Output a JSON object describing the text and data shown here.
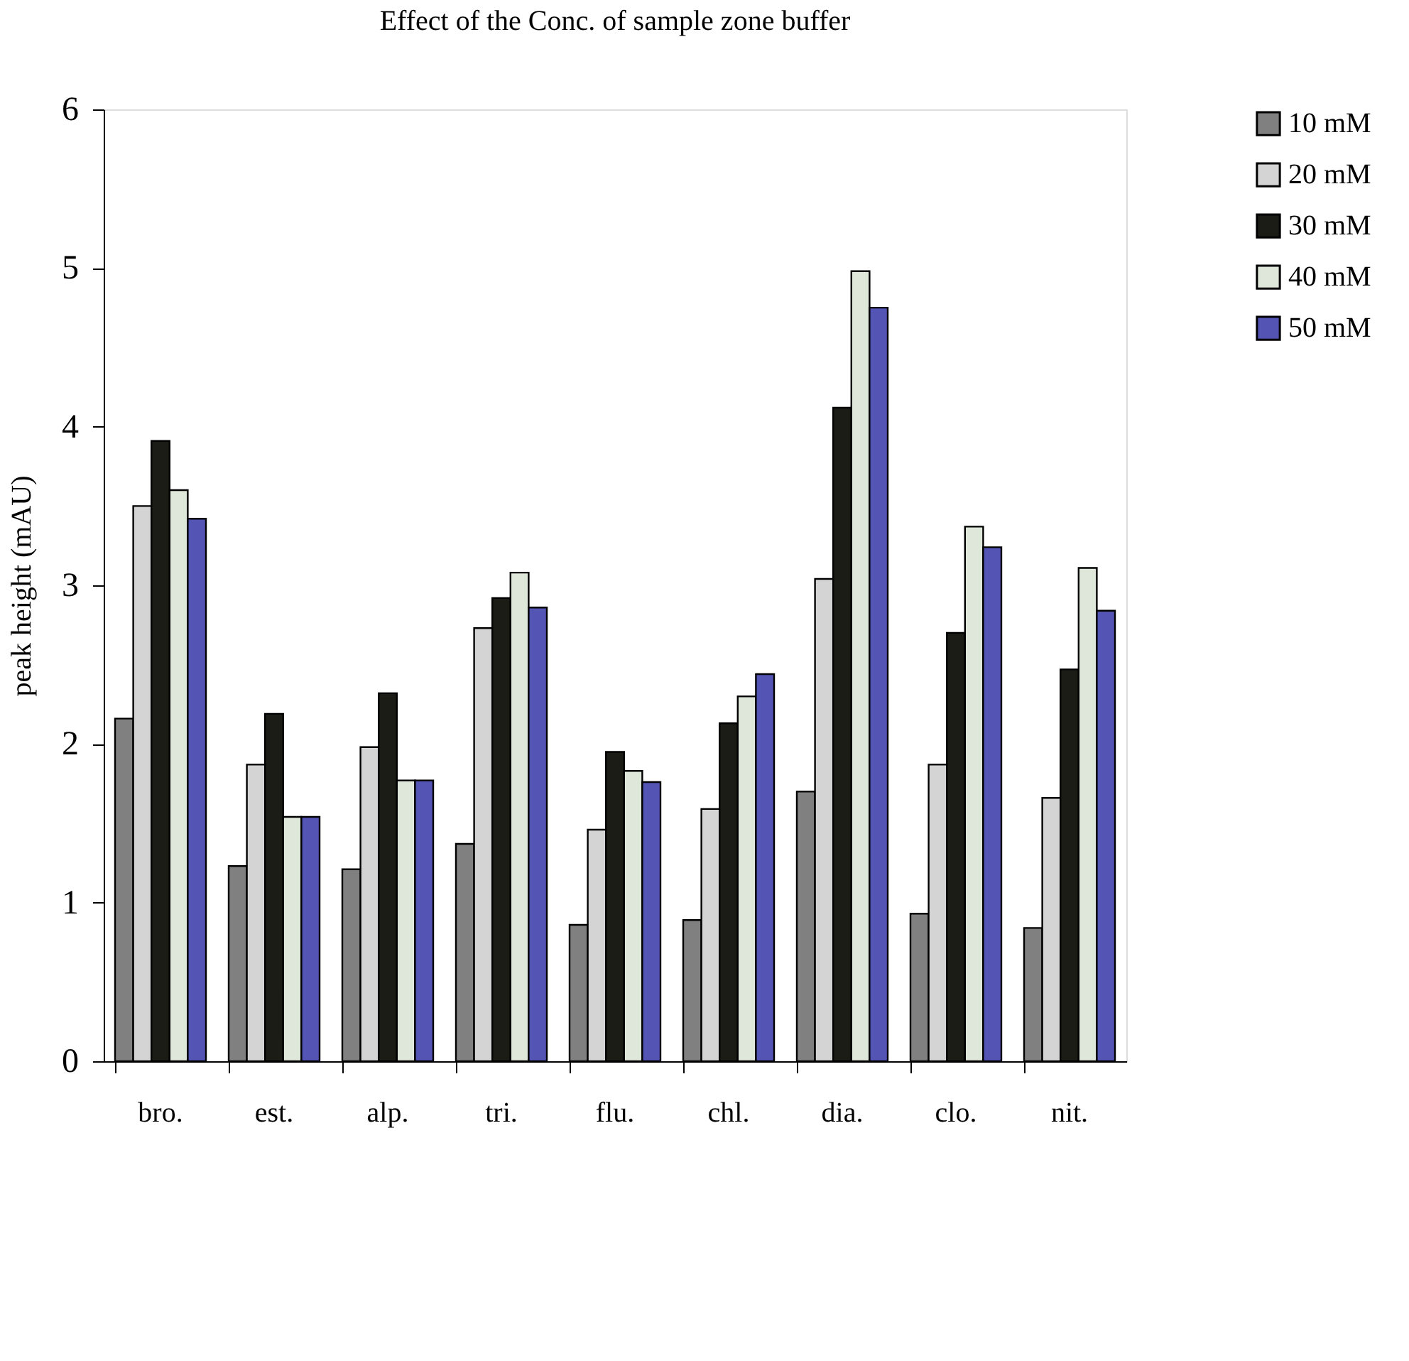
{
  "chart_data": {
    "type": "bar",
    "title": "Effect of the Conc. of sample zone buffer",
    "ylabel": "peak height (mAU)",
    "categories": [
      "bro.",
      "est.",
      "alp.",
      "tri.",
      "flu.",
      "chl.",
      "dia.",
      "clo.",
      "nit."
    ],
    "series": [
      {
        "name": "10 mM",
        "color": "#808080",
        "values": [
          2.16,
          1.23,
          1.21,
          1.37,
          0.86,
          0.89,
          1.7,
          0.93,
          0.84
        ]
      },
      {
        "name": "20 mM",
        "color": "#d4d4d4",
        "values": [
          3.5,
          1.87,
          1.98,
          2.73,
          1.46,
          1.59,
          3.04,
          1.87,
          1.66
        ]
      },
      {
        "name": "30 mM",
        "color": "#1c1c16",
        "values": [
          3.91,
          2.19,
          2.32,
          2.92,
          1.95,
          2.13,
          4.12,
          2.7,
          2.47
        ]
      },
      {
        "name": "40 mM",
        "color": "#dfe6da",
        "values": [
          3.6,
          1.54,
          1.77,
          3.08,
          1.83,
          2.3,
          4.98,
          3.37,
          3.11
        ]
      },
      {
        "name": "50 mM",
        "color": "#5454b4",
        "values": [
          3.42,
          1.54,
          1.77,
          2.86,
          1.76,
          2.44,
          4.75,
          3.24,
          2.84
        ]
      }
    ],
    "ylim": [
      0,
      6
    ],
    "yticks": [
      0,
      1,
      2,
      3,
      4,
      5,
      6
    ],
    "grid": false,
    "legend": "top right"
  }
}
